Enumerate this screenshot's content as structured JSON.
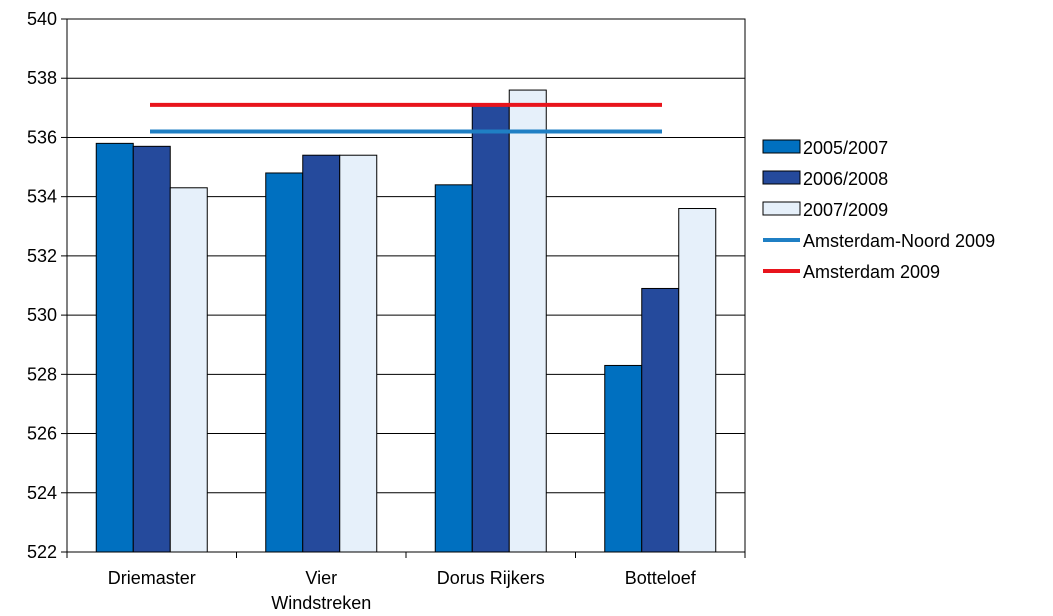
{
  "chart_data": {
    "type": "bar",
    "title": "",
    "xlabel": "",
    "ylabel": "",
    "categories": [
      "Driemaster",
      "Vier Windstreken",
      "Dorus Rijkers",
      "Botteloef"
    ],
    "category_lines": [
      [
        "Driemaster"
      ],
      [
        "Vier",
        "Windstreken"
      ],
      [
        "Dorus Rijkers"
      ],
      [
        "Botteloef"
      ]
    ],
    "series": [
      {
        "name": "2005/2007",
        "color": "#0070c0",
        "values": [
          535.8,
          534.8,
          534.4,
          528.3
        ]
      },
      {
        "name": "2006/2008",
        "color": "#254a9c",
        "values": [
          535.7,
          535.4,
          537.1,
          530.9
        ]
      },
      {
        "name": "2007/2009",
        "color": "#e6f0fa",
        "values": [
          534.3,
          535.4,
          537.6,
          533.6
        ]
      }
    ],
    "reference_lines": [
      {
        "name": "Amsterdam-Noord 2009",
        "color": "#1f7fc4",
        "value": 536.2
      },
      {
        "name": "Amsterdam 2009",
        "color": "#e8141c",
        "value": 537.1
      }
    ],
    "ylim": [
      522,
      540
    ],
    "yticks": [
      "522",
      "524",
      "526",
      "528",
      "530",
      "532",
      "534",
      "536",
      "538",
      "540"
    ],
    "grid": true,
    "legend_position": "right"
  }
}
